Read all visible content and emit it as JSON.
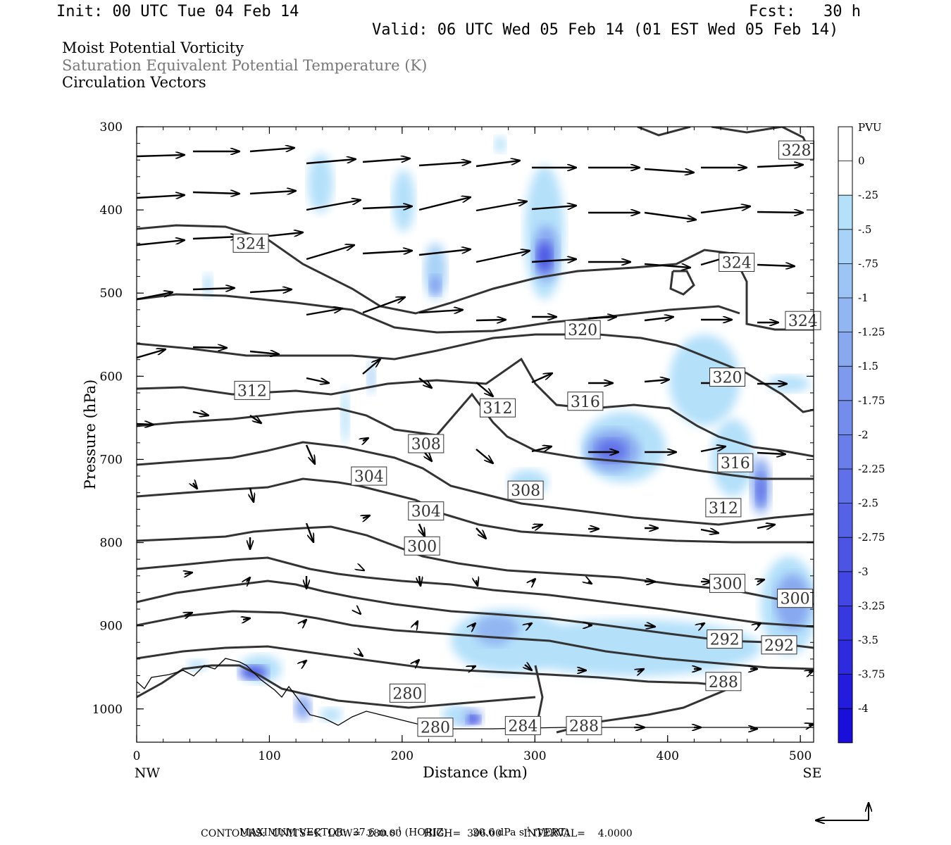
{
  "header": {
    "init": "Init: 00 UTC Tue 04 Feb 14",
    "fcst": "Fcst:   30 h",
    "valid": "Valid: 06 UTC Wed 05 Feb 14 (01 EST Wed 05 Feb 14)",
    "field1": "Moist Potential Vorticity",
    "field2": "Saturation Equivalent Potential Temperature (K)",
    "field3": "Circulation Vectors"
  },
  "footer": {
    "max_vector_label": "MAXIMUM VECTOR:  37.6 m s",
    "max_vector_horiz": "(HORIZ)",
    "max_vector_vert": "20.6 dPa s",
    "max_vector_vert_tag": "(VERT)",
    "exp": "-1",
    "contours": "CONTOURS:  UNITS=K  LOW=  280.00       HIGH=  396.00       INTERVAL=    4.0000"
  },
  "chart_data": {
    "type": "cross-section",
    "xlabel": "Distance (km)",
    "ylabel": "Pressure (hPa)",
    "xlim": [
      0,
      510
    ],
    "ylim": [
      300,
      1040
    ],
    "x_ticks": [
      0,
      100,
      200,
      300,
      400,
      500
    ],
    "y_ticks": [
      300,
      400,
      500,
      600,
      700,
      800,
      900,
      1000
    ],
    "x_end_labels": {
      "left": "NW",
      "right": "SE"
    },
    "colorbar": {
      "unit": "PVU",
      "levels": [
        "0",
        "-.25",
        "-.5",
        "-.75",
        "-1",
        "-1.25",
        "-1.5",
        "-1.75",
        "-2",
        "-2.25",
        "-2.5",
        "-2.75",
        "-3",
        "-3.25",
        "-3.5",
        "-3.75",
        "-4"
      ],
      "colors": [
        "#ffffff",
        "#b4e0fa",
        "#a8d2f7",
        "#9cc4f4",
        "#92b6f2",
        "#88a8f0",
        "#7e9aee",
        "#748cec",
        "#6a7eea",
        "#6070e8",
        "#5662e6",
        "#4c54e4",
        "#4246e2",
        "#3838e0",
        "#2e2ade",
        "#241cdc",
        "#1a0edb"
      ]
    },
    "contour_labels": [
      {
        "v": "328",
        "x": 497,
        "p": 328
      },
      {
        "v": "324",
        "x": 86,
        "p": 440
      },
      {
        "v": "324",
        "x": 452,
        "p": 463
      },
      {
        "v": "324",
        "x": 502,
        "p": 533
      },
      {
        "v": "320",
        "x": 336,
        "p": 544
      },
      {
        "v": "320",
        "x": 445,
        "p": 601
      },
      {
        "v": "316",
        "x": 338,
        "p": 630
      },
      {
        "v": "316",
        "x": 451,
        "p": 704
      },
      {
        "v": "312",
        "x": 87,
        "p": 617
      },
      {
        "v": "312",
        "x": 272,
        "p": 638
      },
      {
        "v": "312",
        "x": 442,
        "p": 758
      },
      {
        "v": "308",
        "x": 218,
        "p": 681
      },
      {
        "v": "308",
        "x": 293,
        "p": 737
      },
      {
        "v": "304",
        "x": 175,
        "p": 720
      },
      {
        "v": "304",
        "x": 218,
        "p": 762
      },
      {
        "v": "300",
        "x": 215,
        "p": 804
      },
      {
        "v": "300",
        "x": 445,
        "p": 849
      },
      {
        "v": "300",
        "x": 496,
        "p": 867
      },
      {
        "v": "292",
        "x": 443,
        "p": 916
      },
      {
        "v": "292",
        "x": 484,
        "p": 923
      },
      {
        "v": "288",
        "x": 442,
        "p": 967
      },
      {
        "v": "280",
        "x": 204,
        "p": 981
      },
      {
        "v": "280",
        "x": 225,
        "p": 1022
      },
      {
        "v": "284",
        "x": 291,
        "p": 1020
      },
      {
        "v": "288",
        "x": 337,
        "p": 1020
      }
    ]
  }
}
